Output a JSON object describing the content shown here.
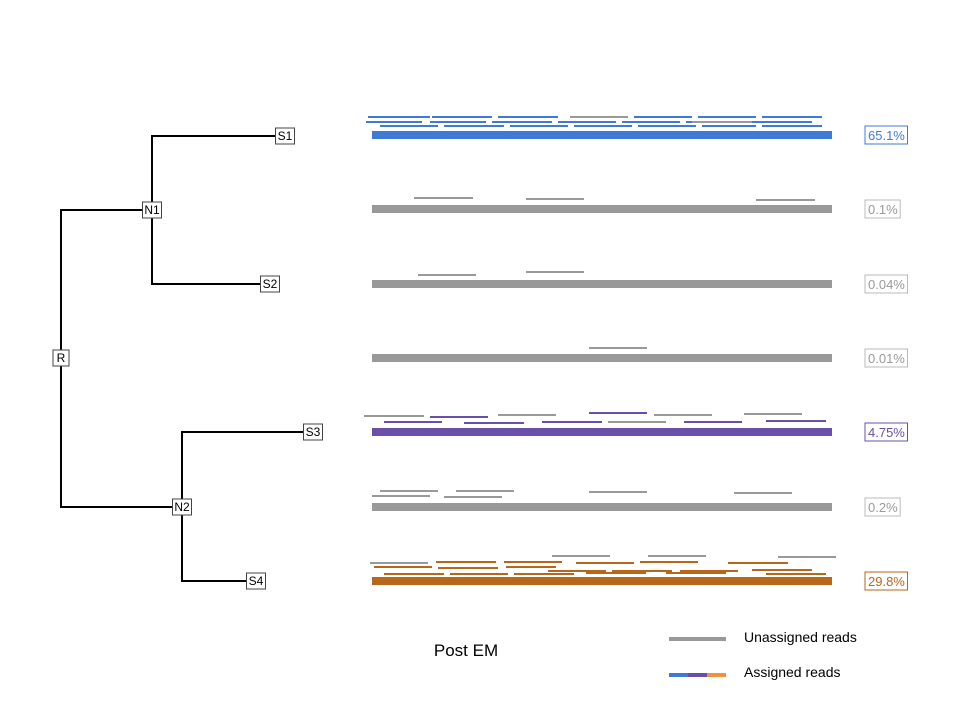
{
  "caption": "Post EM",
  "colors": {
    "unassigned": "#999999",
    "blue": "#3f7bd6",
    "purple": "#6a4fa8",
    "orange": "#b8661a",
    "legend_orange": "#f0923a",
    "tree": "#000000"
  },
  "tree": {
    "nodes": [
      {
        "id": "R",
        "label": "R"
      },
      {
        "id": "N1",
        "label": "N1"
      },
      {
        "id": "N2",
        "label": "N2"
      },
      {
        "id": "S1",
        "label": "S1"
      },
      {
        "id": "S2",
        "label": "S2"
      },
      {
        "id": "S3",
        "label": "S3"
      },
      {
        "id": "S4",
        "label": "S4"
      }
    ],
    "edges": [
      [
        "R",
        "N1"
      ],
      [
        "R",
        "N2"
      ],
      [
        "N1",
        "S1"
      ],
      [
        "N1",
        "S2"
      ],
      [
        "N2",
        "S3"
      ],
      [
        "N2",
        "S4"
      ]
    ]
  },
  "rows": [
    {
      "node": "S1",
      "color": "blue",
      "percent": "65.1%"
    },
    {
      "node": "N1",
      "color": "unassigned",
      "percent": "0.1%"
    },
    {
      "node": "S2",
      "color": "unassigned",
      "percent": "0.04%"
    },
    {
      "node": "R",
      "color": "unassigned",
      "percent": "0.01%"
    },
    {
      "node": "S3",
      "color": "purple",
      "percent": "4.75%"
    },
    {
      "node": "N2",
      "color": "unassigned",
      "percent": "0.2%"
    },
    {
      "node": "S4",
      "color": "orange",
      "percent": "29.8%"
    }
  ],
  "legend": {
    "unassigned_label": "Unassigned reads",
    "assigned_label": "Assigned reads"
  }
}
